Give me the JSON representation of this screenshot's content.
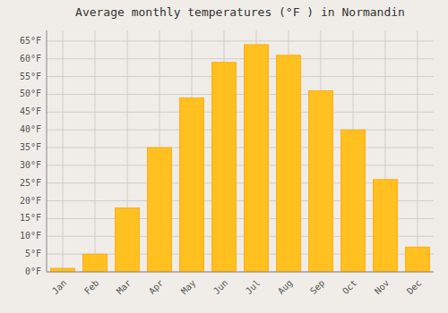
{
  "chart_data": {
    "type": "bar",
    "title": "Average monthly temperatures (°F ) in Normandin",
    "categories": [
      "Jan",
      "Feb",
      "Mar",
      "Apr",
      "May",
      "Jun",
      "Jul",
      "Aug",
      "Sep",
      "Oct",
      "Nov",
      "Dec"
    ],
    "values": [
      1,
      5,
      18,
      35,
      49,
      59,
      64,
      61,
      51,
      40,
      26,
      7
    ],
    "color": "#FFC020",
    "ylim": [
      0,
      68
    ],
    "yticks": [
      {
        "value": 0,
        "label": "0°F"
      },
      {
        "value": 5,
        "label": "5°F"
      },
      {
        "value": 10,
        "label": "10°F"
      },
      {
        "value": 15,
        "label": "15°F"
      },
      {
        "value": 20,
        "label": "20°F"
      },
      {
        "value": 25,
        "label": "25°F"
      },
      {
        "value": 30,
        "label": "30°F"
      },
      {
        "value": 35,
        "label": "35°F"
      },
      {
        "value": 40,
        "label": "40°F"
      },
      {
        "value": 45,
        "label": "45°F"
      },
      {
        "value": 50,
        "label": "50°F"
      },
      {
        "value": 55,
        "label": "55°F"
      },
      {
        "value": 60,
        "label": "60°F"
      },
      {
        "value": 65,
        "label": "65°F"
      }
    ],
    "grid": true
  }
}
